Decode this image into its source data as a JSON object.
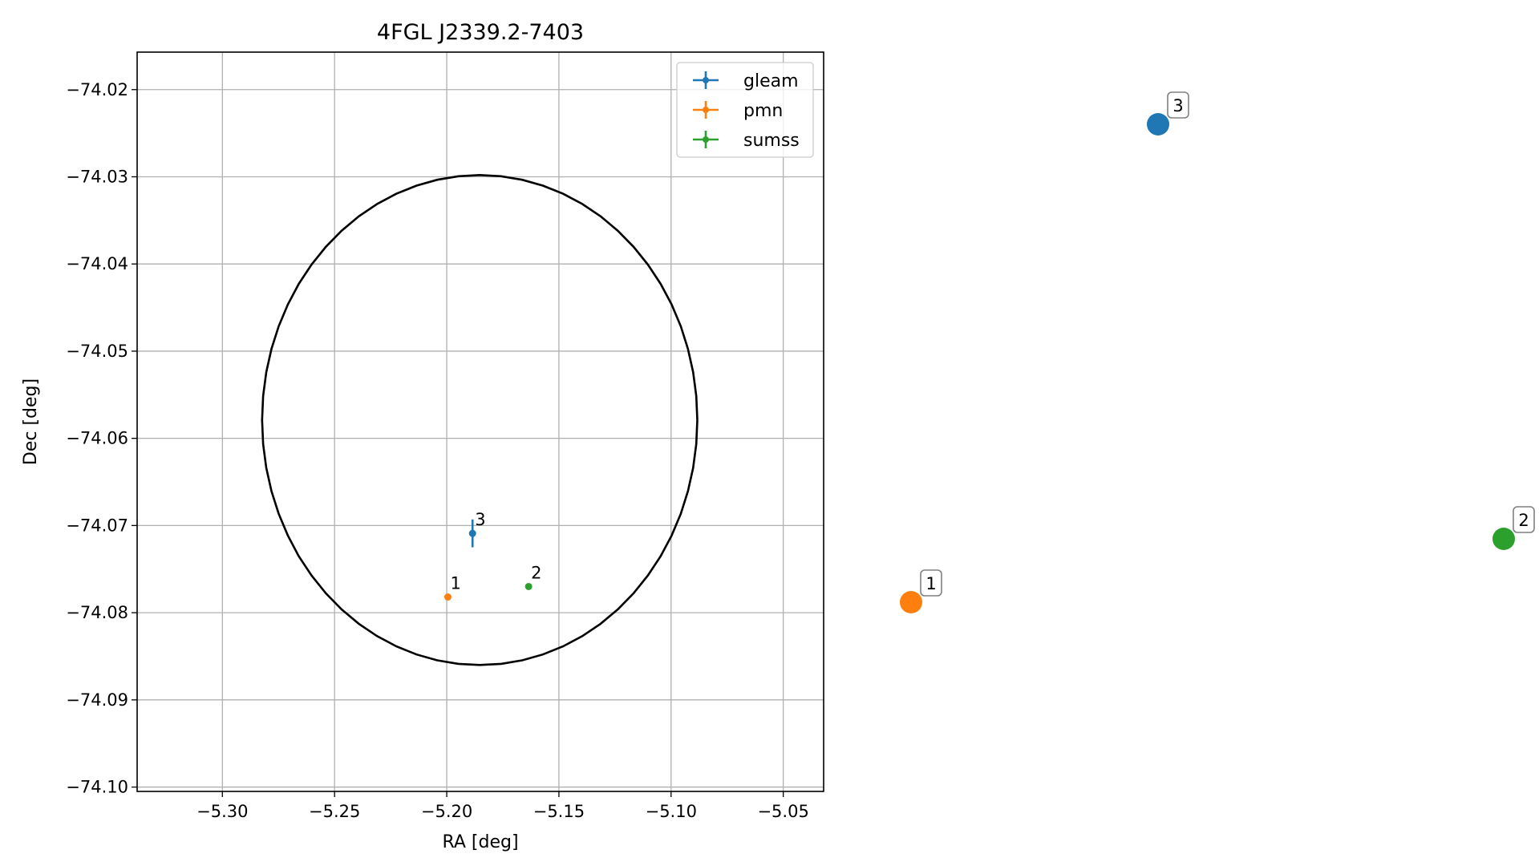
{
  "chart_data": {
    "type": "scatter",
    "title": "4FGL J2339.2-7403",
    "xlabel": "RA [deg]",
    "ylabel": "Dec [deg]",
    "xlim": [
      -5.338,
      -5.032
    ],
    "ylim": [
      -74.1005,
      -74.0157
    ],
    "xticks": [
      -5.3,
      -5.25,
      -5.2,
      -5.15,
      -5.1,
      -5.05
    ],
    "xtick_labels": [
      "−5.30",
      "−5.25",
      "−5.20",
      "−5.15",
      "−5.10",
      "−5.05"
    ],
    "yticks": [
      -74.02,
      -74.03,
      -74.04,
      -74.05,
      -74.06,
      -74.07,
      -74.08,
      -74.09,
      -74.1
    ],
    "ytick_labels": [
      "−74.02",
      "−74.03",
      "−74.04",
      "−74.05",
      "−74.06",
      "−74.07",
      "−74.08",
      "−74.09",
      "−74.10"
    ],
    "grid": true,
    "legend_position": "top-right",
    "series": [
      {
        "name": "gleam",
        "color": "#1f77b4",
        "points": [
          {
            "label": "3",
            "ra": -5.1885,
            "dec": -74.0709,
            "dec_err": 0.0016
          }
        ]
      },
      {
        "name": "pmn",
        "color": "#ff7f0e",
        "points": [
          {
            "label": "1",
            "ra": -5.1995,
            "dec": -74.0782,
            "dec_err": 0
          }
        ]
      },
      {
        "name": "sumss",
        "color": "#2ca02c",
        "points": [
          {
            "label": "2",
            "ra": -5.1635,
            "dec": -74.077,
            "dec_err": 0
          }
        ]
      }
    ],
    "ellipse": {
      "center_ra": -5.1853,
      "center_dec": -74.0579,
      "semi_ra": 0.097,
      "semi_dec": 0.0281,
      "color": "#000000"
    },
    "side_markers": [
      {
        "label": "3",
        "color": "#1f77b4"
      },
      {
        "label": "2",
        "color": "#2ca02c"
      },
      {
        "label": "1",
        "color": "#ff7f0e"
      }
    ]
  }
}
